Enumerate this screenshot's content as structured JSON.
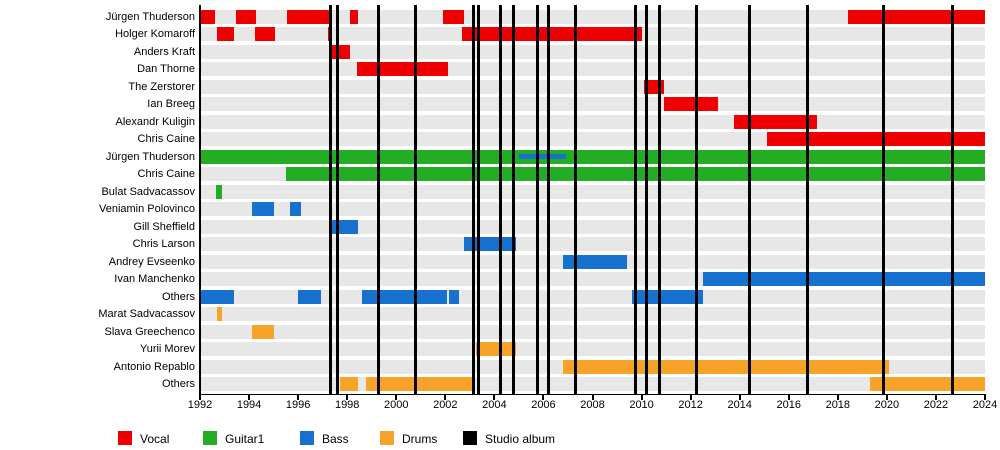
{
  "chart_data": {
    "type": "bar",
    "subtype": "band-members-timeline",
    "xlim": [
      1992,
      2024
    ],
    "x_ticks": [
      1992,
      1994,
      1996,
      1998,
      2000,
      2002,
      2004,
      2006,
      2008,
      2010,
      2012,
      2014,
      2016,
      2018,
      2020,
      2022,
      2024
    ],
    "grid": "row-bands",
    "legend_position": "bottom",
    "rows": [
      {
        "label": "Jürgen Thuderson",
        "role": "vocal",
        "bars": [
          [
            1992.0,
            1992.6
          ],
          [
            1993.45,
            1994.3
          ],
          [
            1995.55,
            1997.3
          ],
          [
            1998.1,
            1998.45
          ],
          [
            2001.9,
            2002.75
          ],
          [
            2018.4,
            2024
          ]
        ]
      },
      {
        "label": "Holger Komaroff",
        "role": "vocal",
        "bars": [
          [
            1992.7,
            1993.4
          ],
          [
            1994.25,
            1995.05
          ],
          [
            1997.2,
            1997.4
          ],
          [
            2002.7,
            2010.0
          ]
        ]
      },
      {
        "label": "Anders Kraft",
        "role": "vocal",
        "bars": [
          [
            1997.3,
            1998.1
          ]
        ]
      },
      {
        "label": "Dan Thorne",
        "role": "vocal",
        "bars": [
          [
            1998.4,
            2002.1
          ]
        ]
      },
      {
        "label": "The Zerstorer",
        "role": "vocal",
        "bars": [
          [
            2010.1,
            2010.9
          ]
        ]
      },
      {
        "label": "Ian Breeg",
        "role": "vocal",
        "bars": [
          [
            2010.9,
            2013.1
          ]
        ]
      },
      {
        "label": "Alexandr Kuligin",
        "role": "vocal",
        "bars": [
          [
            2013.75,
            2017.15
          ]
        ]
      },
      {
        "label": "Chris Caine",
        "role": "vocal",
        "bars": [
          [
            2015.1,
            2024
          ]
        ]
      },
      {
        "label": "Jürgen Thuderson",
        "role": "guitar",
        "bars": [
          [
            1992.0,
            2024
          ]
        ],
        "overlay": {
          "role": "bass",
          "bars": [
            [
              2005.0,
              2006.9
            ]
          ]
        }
      },
      {
        "label": "Chris Caine",
        "role": "guitar",
        "bars": [
          [
            1995.5,
            2024
          ]
        ]
      },
      {
        "label": "Bulat Sadvacassov",
        "role": "guitar",
        "bars": [
          [
            1992.65,
            1992.9
          ]
        ]
      },
      {
        "label": "Veniamin Polovinco",
        "role": "bass",
        "bars": [
          [
            1994.1,
            1995.0
          ],
          [
            1995.65,
            1996.1
          ]
        ]
      },
      {
        "label": "Gill Sheffield",
        "role": "bass",
        "bars": [
          [
            1997.3,
            1998.45
          ]
        ]
      },
      {
        "label": "Chris Larson",
        "role": "bass",
        "bars": [
          [
            2002.75,
            2004.9
          ]
        ]
      },
      {
        "label": "Andrey Evseenko",
        "role": "bass",
        "bars": [
          [
            2006.8,
            2009.4
          ]
        ]
      },
      {
        "label": "Ivan Manchenko",
        "role": "bass",
        "bars": [
          [
            2012.5,
            2024
          ]
        ]
      },
      {
        "label": "Others",
        "role": "bass",
        "bars": [
          [
            1992.0,
            1993.4
          ],
          [
            1996.0,
            1996.95
          ],
          [
            1998.6,
            2002.05
          ],
          [
            2002.15,
            2002.55
          ],
          [
            2009.6,
            2012.5
          ]
        ]
      },
      {
        "label": "Marat Sadvacassov",
        "role": "drums",
        "bars": [
          [
            1992.7,
            1992.9
          ]
        ]
      },
      {
        "label": "Slava Greechenco",
        "role": "drums",
        "bars": [
          [
            1994.1,
            1995.0
          ]
        ]
      },
      {
        "label": "Yurii Morev",
        "role": "drums",
        "bars": [
          [
            2003.25,
            2004.9
          ]
        ]
      },
      {
        "label": "Antonio Repablo",
        "role": "drums",
        "bars": [
          [
            2006.8,
            2020.1
          ]
        ]
      },
      {
        "label": "Others",
        "role": "drums",
        "bars": [
          [
            1997.7,
            1998.45
          ],
          [
            1998.75,
            2003.15
          ],
          [
            2019.3,
            2024
          ]
        ]
      }
    ],
    "studio_albums": [
      1997.31,
      1997.59,
      1999.28,
      2000.78,
      2003.16,
      2003.36,
      2004.24,
      2004.79,
      2005.74,
      2006.22,
      2007.31,
      2009.76,
      2010.2,
      2010.73,
      2012.24,
      2014.4,
      2016.76,
      2019.87,
      2022.68
    ],
    "legend": [
      {
        "label": "Vocal",
        "role": "vocal"
      },
      {
        "label": "Guitar1",
        "role": "guitar"
      },
      {
        "label": "Bass",
        "role": "bass"
      },
      {
        "label": "Drums",
        "role": "drums"
      },
      {
        "label": "Studio album",
        "role": "album"
      }
    ],
    "colors": {
      "vocal": "#ee0000",
      "guitar": "#23ad23",
      "bass": "#1672ce",
      "drums": "#f7a32a",
      "album": "#000000",
      "row_band": "#e7e7e7",
      "background": "#ffffff"
    }
  }
}
